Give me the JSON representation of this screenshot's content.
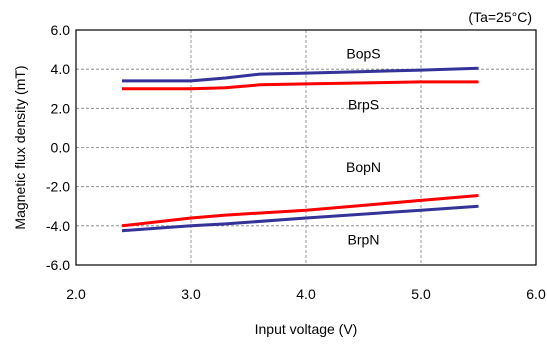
{
  "chart_data": {
    "type": "line",
    "title": "",
    "xlabel": "Input voltage (V)",
    "ylabel": "Magnetic flux density (mT)",
    "xlim": [
      2.0,
      6.0
    ],
    "ylim": [
      -6.0,
      6.0
    ],
    "x_ticks": [
      "2.0",
      "3.0",
      "4.0",
      "5.0",
      "6.0"
    ],
    "y_ticks": [
      "6.0",
      "4.0",
      "2.0",
      "0.0",
      "-2.0",
      "-4.0",
      "-6.0"
    ],
    "grid": true,
    "legend": "none",
    "condition_note": "(Ta=25°C)",
    "series": [
      {
        "name": "BopS",
        "color": "#333399",
        "x": [
          2.4,
          3.0,
          3.3,
          3.6,
          4.0,
          5.0,
          5.5
        ],
        "y": [
          3.4,
          3.4,
          3.55,
          3.75,
          3.8,
          3.95,
          4.05
        ]
      },
      {
        "name": "BrpS",
        "color": "#ff0000",
        "x": [
          2.4,
          3.0,
          3.3,
          3.6,
          4.0,
          5.0,
          5.5
        ],
        "y": [
          3.0,
          3.0,
          3.05,
          3.2,
          3.25,
          3.35,
          3.35
        ]
      },
      {
        "name": "BopN",
        "color": "#ff0000",
        "x": [
          2.4,
          3.0,
          3.3,
          4.0,
          5.0,
          5.5
        ],
        "y": [
          -4.0,
          -3.6,
          -3.45,
          -3.2,
          -2.7,
          -2.45
        ]
      },
      {
        "name": "BrpN",
        "color": "#333399",
        "x": [
          2.4,
          3.0,
          3.3,
          4.0,
          5.0,
          5.5
        ],
        "y": [
          -4.25,
          -4.0,
          -3.9,
          -3.6,
          -3.2,
          -3.0
        ]
      }
    ],
    "annotations": [
      {
        "text": "BopS",
        "x": 4.5,
        "y": 4.8
      },
      {
        "text": "BrpS",
        "x": 4.5,
        "y": 2.2
      },
      {
        "text": "BopN",
        "x": 4.5,
        "y": -1.0
      },
      {
        "text": "BrpN",
        "x": 4.5,
        "y": -4.7
      }
    ]
  }
}
